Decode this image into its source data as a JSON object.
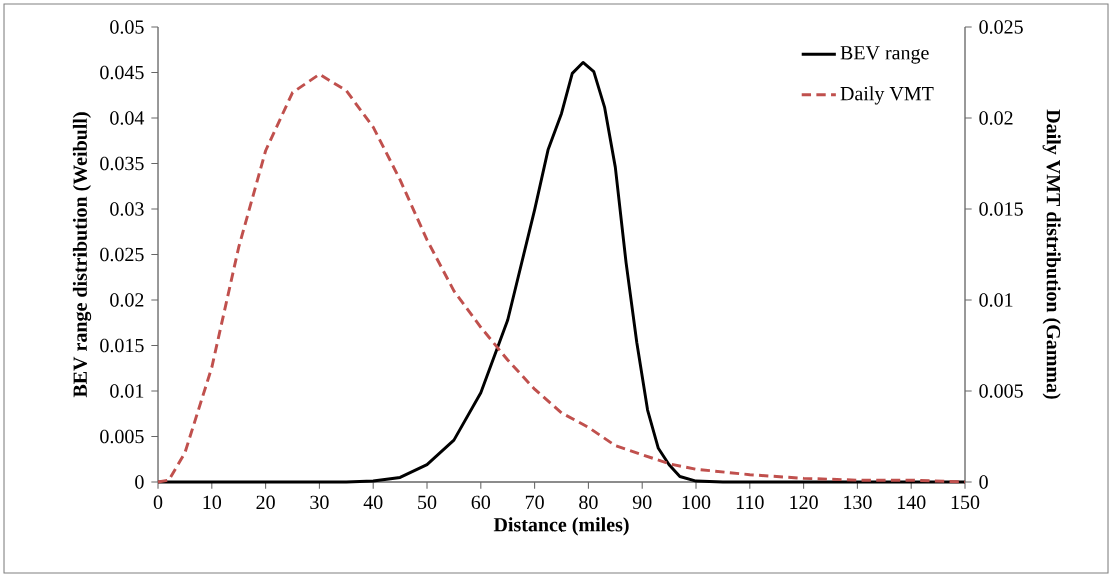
{
  "chart_data": {
    "type": "line",
    "xlabel": "Distance (miles)",
    "ylabel": "BEV range distribution (Weibull)",
    "y2label": "Daily VMT distribution (Gamma)",
    "legend": "top right",
    "series": [
      {
        "name": "BEV range",
        "color": "#000000",
        "line_style": "solid",
        "x": [
          0,
          10,
          20,
          30,
          35,
          40,
          45,
          50,
          55,
          60,
          65,
          70,
          72.5,
          75,
          77,
          79,
          81,
          83,
          85,
          87,
          89,
          91,
          93,
          95,
          97,
          100,
          105,
          110,
          120,
          130,
          140,
          150
        ],
        "values": [
          0,
          0,
          0,
          0,
          0,
          0.0001,
          0.0005,
          0.0019,
          0.0046,
          0.0098,
          0.0178,
          0.0299,
          0.0365,
          0.0405,
          0.0449,
          0.0461,
          0.0451,
          0.0412,
          0.0346,
          0.0241,
          0.0153,
          0.0079,
          0.0037,
          0.0019,
          0.0006,
          0.0001,
          0,
          0,
          0,
          0,
          0,
          0
        ]
      },
      {
        "name": "Daily VMT",
        "color": "#c0504d",
        "line_style": "dashed",
        "axis": "y2",
        "x": [
          0,
          2,
          5,
          10,
          15,
          20,
          25,
          30,
          35,
          40,
          45,
          50,
          55,
          60,
          65,
          70,
          75,
          80,
          85,
          90,
          95,
          100,
          110,
          120,
          130,
          140,
          150
        ],
        "values": [
          0,
          0.0001,
          0.0016,
          0.0063,
          0.0129,
          0.0182,
          0.0214,
          0.0224,
          0.0215,
          0.0195,
          0.0166,
          0.0133,
          0.0105,
          0.0085,
          0.0067,
          0.0051,
          0.0038,
          0.003,
          0.002,
          0.0015,
          0.001,
          0.0007,
          0.0004,
          0.0002,
          0.0001,
          0.0001,
          0
        ]
      }
    ],
    "xlim": [
      0,
      150
    ],
    "xticks": [
      0,
      10,
      20,
      30,
      40,
      50,
      60,
      70,
      80,
      90,
      100,
      110,
      120,
      130,
      140,
      150
    ],
    "ylim": [
      0,
      0.05
    ],
    "yticks": [
      0,
      0.005,
      0.01,
      0.015,
      0.02,
      0.025,
      0.03,
      0.035,
      0.04,
      0.045,
      0.05
    ],
    "y2lim": [
      0,
      0.025
    ],
    "y2ticks": [
      0,
      0.005,
      0.01,
      0.015,
      0.02,
      0.025
    ]
  }
}
